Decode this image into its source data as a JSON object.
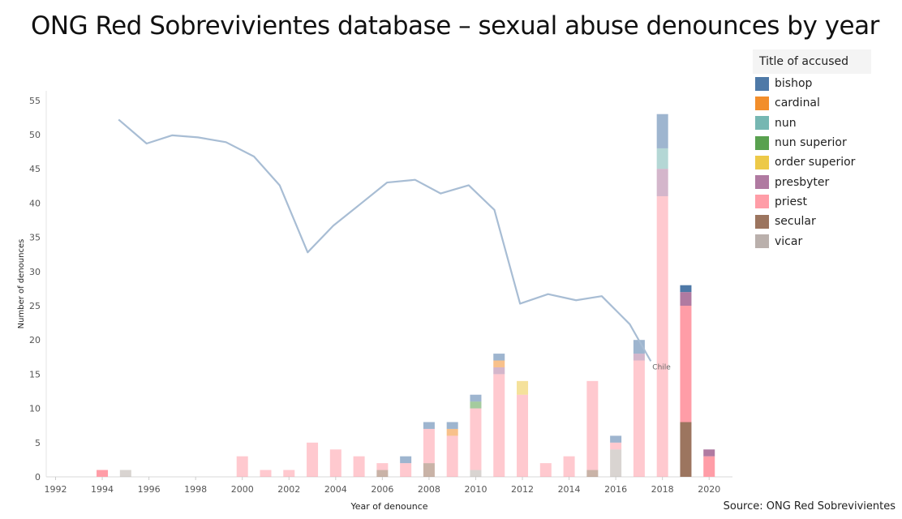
{
  "title": "ONG Red Sobrevivientes database – sexual abuse denounces by year",
  "source": "Source: ONG Red Sobrevivientes",
  "legend": {
    "title": "Title of accused",
    "items": [
      {
        "label": "bishop",
        "color": "#4e79a7"
      },
      {
        "label": "cardinal",
        "color": "#f28e2b"
      },
      {
        "label": "nun",
        "color": "#76b7b2"
      },
      {
        "label": "nun superior",
        "color": "#59a14f"
      },
      {
        "label": "order superior",
        "color": "#edc948"
      },
      {
        "label": "presbyter",
        "color": "#b07aa1"
      },
      {
        "label": "priest",
        "color": "#ff9da7"
      },
      {
        "label": "secular",
        "color": "#9c755f"
      },
      {
        "label": "vicar",
        "color": "#bab0ac"
      }
    ]
  },
  "chart_data": {
    "type": "bar",
    "stacked": true,
    "xlabel": "Year of denounce",
    "ylabel": "Number of denounces",
    "ylim": [
      0,
      55
    ],
    "yticks": [
      0,
      5,
      10,
      15,
      20,
      25,
      30,
      35,
      40,
      45,
      50,
      55
    ],
    "xticks": [
      1992,
      1994,
      1996,
      1998,
      2000,
      2002,
      2004,
      2006,
      2008,
      2010,
      2012,
      2014,
      2016,
      2018,
      2020
    ],
    "highlight_years": [
      1994,
      2019,
      2020
    ],
    "bars": [
      {
        "year": 1994,
        "segments": {
          "priest": 1
        }
      },
      {
        "year": 1995,
        "segments": {
          "vicar": 1
        }
      },
      {
        "year": 2000,
        "segments": {
          "priest": 3
        }
      },
      {
        "year": 2001,
        "segments": {
          "priest": 1
        }
      },
      {
        "year": 2002,
        "segments": {
          "priest": 1
        }
      },
      {
        "year": 2003,
        "segments": {
          "priest": 5
        }
      },
      {
        "year": 2004,
        "segments": {
          "priest": 4
        }
      },
      {
        "year": 2005,
        "segments": {
          "priest": 3
        }
      },
      {
        "year": 2006,
        "segments": {
          "secular": 1,
          "priest": 1
        }
      },
      {
        "year": 2007,
        "segments": {
          "priest": 2,
          "bishop": 1
        }
      },
      {
        "year": 2008,
        "segments": {
          "secular": 2,
          "priest": 5,
          "bishop": 1
        }
      },
      {
        "year": 2009,
        "segments": {
          "priest": 6,
          "cardinal": 1,
          "bishop": 1
        }
      },
      {
        "year": 2010,
        "segments": {
          "vicar": 1,
          "priest": 9,
          "nun superior": 1,
          "bishop": 1
        }
      },
      {
        "year": 2011,
        "segments": {
          "priest": 15,
          "presbyter": 1,
          "cardinal": 1,
          "bishop": 1
        }
      },
      {
        "year": 2012,
        "segments": {
          "priest": 12,
          "order superior": 2
        }
      },
      {
        "year": 2013,
        "segments": {
          "priest": 2
        }
      },
      {
        "year": 2014,
        "segments": {
          "priest": 3
        }
      },
      {
        "year": 2015,
        "segments": {
          "secular": 1,
          "priest": 13
        }
      },
      {
        "year": 2016,
        "segments": {
          "vicar": 4,
          "priest": 1,
          "bishop": 1
        }
      },
      {
        "year": 2017,
        "segments": {
          "priest": 17,
          "presbyter": 1,
          "bishop": 2
        }
      },
      {
        "year": 2018,
        "segments": {
          "priest": 41,
          "presbyter": 4,
          "nun": 3,
          "bishop": 5
        }
      },
      {
        "year": 2019,
        "segments": {
          "secular": 8,
          "priest": 17,
          "presbyter": 2,
          "bishop": 1
        }
      },
      {
        "year": 2020,
        "segments": {
          "priest": 3,
          "presbyter": 1
        }
      }
    ],
    "line_series": {
      "name": "Chile",
      "points": [
        {
          "x": 1994.7,
          "y": 52.2
        },
        {
          "x": 1995.9,
          "y": 48.7
        },
        {
          "x": 1997.0,
          "y": 49.9
        },
        {
          "x": 1998.1,
          "y": 49.6
        },
        {
          "x": 1999.3,
          "y": 48.9
        },
        {
          "x": 2000.5,
          "y": 46.8
        },
        {
          "x": 2001.6,
          "y": 42.6
        },
        {
          "x": 2002.8,
          "y": 32.8
        },
        {
          "x": 2003.9,
          "y": 36.7
        },
        {
          "x": 2005.0,
          "y": 39.7
        },
        {
          "x": 2006.2,
          "y": 43.0
        },
        {
          "x": 2007.4,
          "y": 43.4
        },
        {
          "x": 2008.5,
          "y": 41.4
        },
        {
          "x": 2009.7,
          "y": 42.6
        },
        {
          "x": 2010.8,
          "y": 39.0
        },
        {
          "x": 2011.9,
          "y": 25.3
        },
        {
          "x": 2013.1,
          "y": 26.7
        },
        {
          "x": 2014.3,
          "y": 25.8
        },
        {
          "x": 2015.4,
          "y": 26.4
        },
        {
          "x": 2016.6,
          "y": 22.3
        },
        {
          "x": 2017.5,
          "y": 16.9
        }
      ]
    }
  }
}
